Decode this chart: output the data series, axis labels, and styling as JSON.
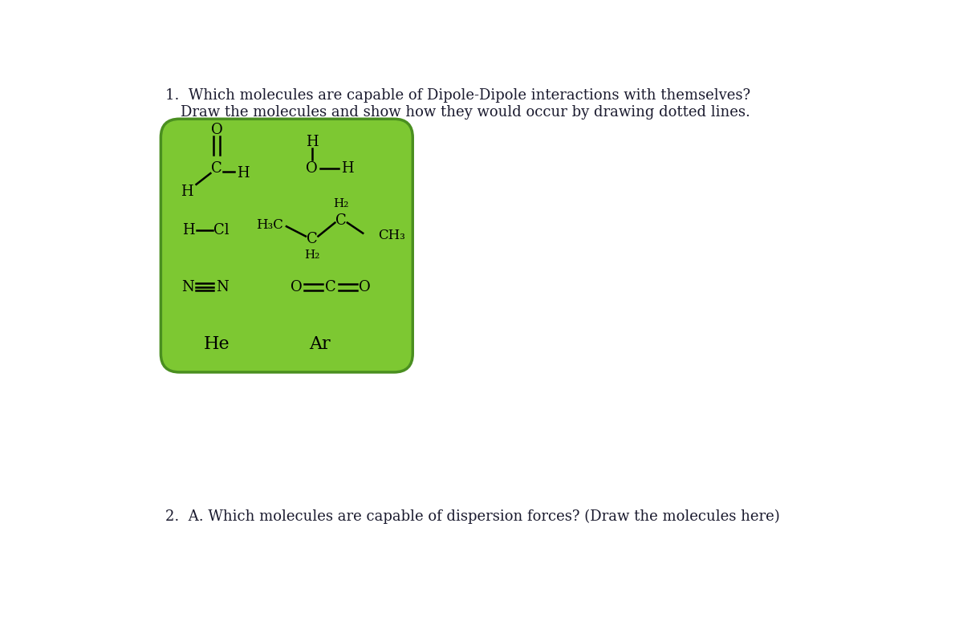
{
  "bg_color": "#ffffff",
  "box_color": "#7dc832",
  "box_border_color": "#4a8f20",
  "text_color": "#1a1a2e",
  "title_line1": "1.  Which molecules are capable of Dipole-Dipole interactions with themselves?",
  "title_line2": "Draw the molecules and show how they would occur by drawing dotted lines.",
  "question2": "2.  A. Which molecules are capable of dispersion forces? (Draw the molecules here)",
  "font_family": "DejaVu Serif",
  "title_fontsize": 13.0,
  "molecule_fontsize": 13,
  "q2_fontsize": 13.0,
  "fig_width": 12.0,
  "fig_height": 7.99
}
